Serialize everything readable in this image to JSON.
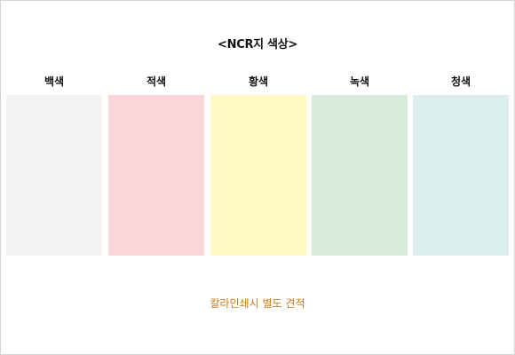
{
  "title": "<NCR지 색상>",
  "swatches": [
    {
      "label": "백색",
      "color": "#f4f3f4"
    },
    {
      "label": "적색",
      "color": "#fcd5da"
    },
    {
      "label": "황색",
      "color": "#fefac0"
    },
    {
      "label": "녹색",
      "color": "#d7ecd8"
    },
    {
      "label": "청색",
      "color": "#dcefef"
    }
  ],
  "note": "칼라인쇄시 별도 견적",
  "colors": {
    "note_text": "#c8781e",
    "border": "#d4d4d4"
  }
}
